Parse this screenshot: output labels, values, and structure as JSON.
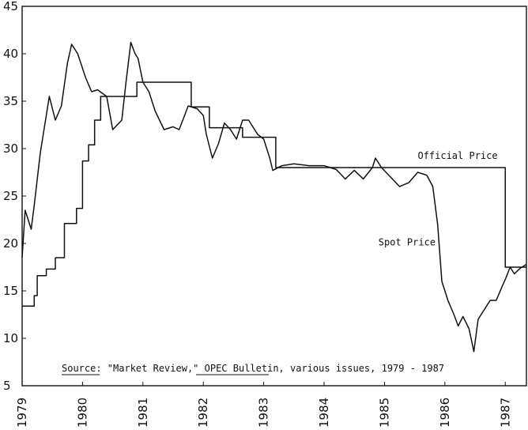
{
  "chart_data": {
    "type": "line",
    "title": "",
    "xlabel": "",
    "ylabel": "",
    "xlim": [
      1979.0,
      1987.35
    ],
    "ylim": [
      5,
      45
    ],
    "y_ticks": [
      5,
      10,
      15,
      20,
      25,
      30,
      35,
      40,
      45
    ],
    "x_ticks": [
      "1979",
      "1980",
      "1981",
      "1982",
      "1983",
      "1984",
      "1985",
      "1986",
      "1987"
    ],
    "grid": false,
    "series": [
      {
        "name": "Official Price",
        "label": "Official Price",
        "step": true,
        "points": [
          [
            1979.0,
            13.4
          ],
          [
            1979.15,
            13.4
          ],
          [
            1979.2,
            14.5
          ],
          [
            1979.25,
            16.6
          ],
          [
            1979.35,
            16.6
          ],
          [
            1979.4,
            17.3
          ],
          [
            1979.5,
            17.3
          ],
          [
            1979.55,
            18.5
          ],
          [
            1979.65,
            18.5
          ],
          [
            1979.7,
            22.1
          ],
          [
            1979.85,
            22.1
          ],
          [
            1979.9,
            23.7
          ],
          [
            1979.95,
            23.7
          ],
          [
            1980.0,
            28.7
          ],
          [
            1980.05,
            28.7
          ],
          [
            1980.1,
            30.4
          ],
          [
            1980.15,
            30.4
          ],
          [
            1980.2,
            33.0
          ],
          [
            1980.25,
            33.0
          ],
          [
            1980.3,
            35.5
          ],
          [
            1980.85,
            35.5
          ],
          [
            1980.9,
            37.0
          ],
          [
            1981.75,
            37.0
          ],
          [
            1981.8,
            34.4
          ],
          [
            1982.05,
            34.4
          ],
          [
            1982.1,
            32.2
          ],
          [
            1982.6,
            32.2
          ],
          [
            1982.65,
            31.2
          ],
          [
            1983.15,
            31.2
          ],
          [
            1983.2,
            28.0
          ],
          [
            1986.95,
            28.0
          ],
          [
            1987.0,
            17.5
          ],
          [
            1987.35,
            17.5
          ]
        ]
      },
      {
        "name": "Spot Price",
        "label": "Spot Price",
        "step": false,
        "points": [
          [
            1979.0,
            18.5
          ],
          [
            1979.05,
            23.5
          ],
          [
            1979.15,
            21.5
          ],
          [
            1979.2,
            24.0
          ],
          [
            1979.3,
            29.5
          ],
          [
            1979.45,
            35.5
          ],
          [
            1979.55,
            33.0
          ],
          [
            1979.65,
            34.5
          ],
          [
            1979.75,
            39.0
          ],
          [
            1979.82,
            41.0
          ],
          [
            1979.92,
            40.0
          ],
          [
            1980.05,
            37.5
          ],
          [
            1980.15,
            36.0
          ],
          [
            1980.25,
            36.2
          ],
          [
            1980.4,
            35.5
          ],
          [
            1980.5,
            32.0
          ],
          [
            1980.65,
            33.0
          ],
          [
            1980.72,
            37.0
          ],
          [
            1980.8,
            41.2
          ],
          [
            1980.87,
            40.0
          ],
          [
            1980.92,
            39.5
          ],
          [
            1981.0,
            37.0
          ],
          [
            1981.1,
            36.0
          ],
          [
            1981.2,
            34.0
          ],
          [
            1981.35,
            32.0
          ],
          [
            1981.5,
            32.3
          ],
          [
            1981.6,
            32.0
          ],
          [
            1981.75,
            34.5
          ],
          [
            1981.9,
            34.2
          ],
          [
            1982.0,
            33.5
          ],
          [
            1982.05,
            31.5
          ],
          [
            1982.15,
            29.0
          ],
          [
            1982.25,
            30.5
          ],
          [
            1982.35,
            32.7
          ],
          [
            1982.45,
            32.0
          ],
          [
            1982.55,
            31.0
          ],
          [
            1982.65,
            33.0
          ],
          [
            1982.75,
            33.0
          ],
          [
            1982.9,
            31.5
          ],
          [
            1983.0,
            31.0
          ],
          [
            1983.1,
            29.0
          ],
          [
            1983.15,
            27.7
          ],
          [
            1983.3,
            28.2
          ],
          [
            1983.5,
            28.4
          ],
          [
            1983.75,
            28.2
          ],
          [
            1984.0,
            28.2
          ],
          [
            1984.2,
            27.8
          ],
          [
            1984.35,
            26.8
          ],
          [
            1984.5,
            27.7
          ],
          [
            1984.65,
            26.8
          ],
          [
            1984.8,
            28.0
          ],
          [
            1984.85,
            29.0
          ],
          [
            1984.95,
            28.0
          ],
          [
            1985.1,
            27.0
          ],
          [
            1985.25,
            26.0
          ],
          [
            1985.4,
            26.4
          ],
          [
            1985.55,
            27.5
          ],
          [
            1985.7,
            27.2
          ],
          [
            1985.8,
            26.0
          ],
          [
            1985.88,
            22.0
          ],
          [
            1985.95,
            16.0
          ],
          [
            1986.05,
            14.0
          ],
          [
            1986.15,
            12.5
          ],
          [
            1986.22,
            11.3
          ],
          [
            1986.3,
            12.3
          ],
          [
            1986.4,
            11.0
          ],
          [
            1986.48,
            8.6
          ],
          [
            1986.55,
            12.0
          ],
          [
            1986.65,
            13.0
          ],
          [
            1986.75,
            14.0
          ],
          [
            1986.85,
            14.0
          ],
          [
            1986.95,
            15.5
          ],
          [
            1987.0,
            16.2
          ],
          [
            1987.08,
            17.5
          ],
          [
            1987.15,
            16.8
          ],
          [
            1987.25,
            17.4
          ],
          [
            1987.35,
            17.8
          ]
        ]
      }
    ],
    "annotations": {
      "source_label": "Source:",
      "source_text_1": " \"Market Review,\" ",
      "source_bulletin": "OPEC Bulletin",
      "source_text_2": ", various issues, 1979 - 1987"
    }
  }
}
